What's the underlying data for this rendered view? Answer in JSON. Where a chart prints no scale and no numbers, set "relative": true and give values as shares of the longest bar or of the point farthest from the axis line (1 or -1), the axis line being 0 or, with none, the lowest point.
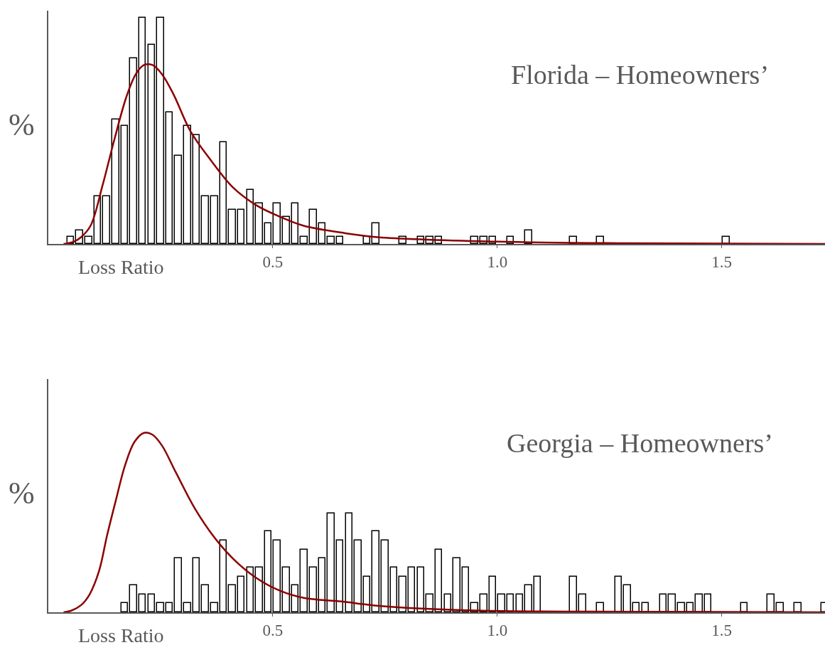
{
  "chart_data": [
    {
      "type": "bar",
      "title": "Florida – Homeowners’",
      "xlabel": "Loss Ratio",
      "ylabel": "%",
      "relative": true,
      "xlim": [
        0,
        1.73
      ],
      "xticks": [
        {
          "value": 0.5,
          "label": "0.5"
        },
        {
          "value": 1.0,
          "label": "1.0"
        },
        {
          "value": 1.5,
          "label": "1.5"
        }
      ],
      "series": [
        {
          "color": "#ffffff",
          "x": [
            0.05,
            0.07,
            0.09,
            0.11,
            0.13,
            0.15,
            0.17,
            0.19,
            0.21,
            0.23,
            0.25,
            0.27,
            0.29,
            0.31,
            0.33,
            0.35,
            0.37,
            0.39,
            0.41,
            0.43,
            0.45,
            0.47,
            0.49,
            0.51,
            0.53,
            0.55,
            0.57,
            0.59,
            0.61,
            0.63,
            0.65,
            0.71,
            0.73,
            0.79,
            0.83,
            0.85,
            0.87,
            0.95,
            0.97,
            0.99,
            1.03,
            1.07,
            1.17,
            1.23,
            1.51
          ],
          "values": [
            0.03,
            0.06,
            0.03,
            0.21,
            0.21,
            0.55,
            0.52,
            0.82,
            1,
            0.88,
            1,
            0.58,
            0.39,
            0.52,
            0.48,
            0.21,
            0.21,
            0.45,
            0.15,
            0.15,
            0.24,
            0.18,
            0.09,
            0.18,
            0.12,
            0.18,
            0.03,
            0.15,
            0.09,
            0.03,
            0.03,
            0.03,
            0.09,
            0.03,
            0.03,
            0.03,
            0.03,
            0.03,
            0.03,
            0.03,
            0.03,
            0.06,
            0.03,
            0.03,
            0.03
          ]
        },
        {
          "type": "line",
          "color": "#8b0000",
          "x": [
            0.034,
            0.057,
            0.073,
            0.094,
            0.121,
            0.147,
            0.174,
            0.195,
            0.213,
            0.232,
            0.253,
            0.279,
            0.316,
            0.358,
            0.411,
            0.464,
            0.516,
            0.569,
            0.653,
            0.733,
            1.0,
            1.29,
            1.73
          ],
          "values": [
            0,
            0.01,
            0.03,
            0.08,
            0.26,
            0.46,
            0.65,
            0.75,
            0.79,
            0.79,
            0.75,
            0.66,
            0.5,
            0.38,
            0.25,
            0.17,
            0.12,
            0.08,
            0.05,
            0.03,
            0.01,
            0.003,
            0
          ]
        }
      ]
    },
    {
      "type": "bar",
      "title": "Georgia – Homeowners’",
      "xlabel": "Loss Ratio",
      "ylabel": "%",
      "relative": true,
      "xlim": [
        0,
        1.73
      ],
      "xticks": [
        {
          "value": 0.5,
          "label": "0.5"
        },
        {
          "value": 1.0,
          "label": "1.0"
        },
        {
          "value": 1.5,
          "label": "1.5"
        }
      ],
      "series": [
        {
          "color": "#ffffff",
          "x": [
            0.17,
            0.19,
            0.21,
            0.23,
            0.25,
            0.27,
            0.29,
            0.31,
            0.33,
            0.35,
            0.37,
            0.39,
            0.41,
            0.43,
            0.45,
            0.47,
            0.49,
            0.51,
            0.53,
            0.55,
            0.57,
            0.59,
            0.61,
            0.63,
            0.65,
            0.67,
            0.69,
            0.71,
            0.73,
            0.75,
            0.77,
            0.79,
            0.81,
            0.83,
            0.85,
            0.87,
            0.89,
            0.91,
            0.93,
            0.95,
            0.97,
            0.99,
            1.01,
            1.03,
            1.05,
            1.07,
            1.09,
            1.17,
            1.19,
            1.23,
            1.27,
            1.29,
            1.31,
            1.33,
            1.37,
            1.39,
            1.41,
            1.43,
            1.45,
            1.47,
            1.55,
            1.61,
            1.63,
            1.67,
            1.73
          ],
          "values": [
            0.05,
            0.15,
            0.1,
            0.1,
            0.05,
            0.05,
            0.3,
            0.05,
            0.3,
            0.15,
            0.05,
            0.4,
            0.15,
            0.2,
            0.25,
            0.25,
            0.45,
            0.4,
            0.25,
            0.15,
            0.35,
            0.25,
            0.3,
            0.55,
            0.4,
            0.55,
            0.4,
            0.2,
            0.45,
            0.4,
            0.25,
            0.2,
            0.25,
            0.25,
            0.1,
            0.35,
            0.1,
            0.3,
            0.25,
            0.05,
            0.1,
            0.2,
            0.1,
            0.1,
            0.1,
            0.15,
            0.2,
            0.2,
            0.1,
            0.05,
            0.2,
            0.15,
            0.05,
            0.05,
            0.1,
            0.1,
            0.05,
            0.05,
            0.1,
            0.1,
            0.05,
            0.1,
            0.05,
            0.05,
            0.05
          ]
        },
        {
          "type": "line",
          "color": "#8b0000",
          "x": [
            0.034,
            0.052,
            0.073,
            0.092,
            0.113,
            0.131,
            0.15,
            0.171,
            0.192,
            0.213,
            0.232,
            0.253,
            0.284,
            0.326,
            0.369,
            0.411,
            0.464,
            0.516,
            0.569,
            0.653,
            0.736,
            0.954,
            1.318,
            1.73
          ],
          "values": [
            0,
            0.01,
            0.04,
            0.1,
            0.23,
            0.43,
            0.62,
            0.82,
            0.95,
            1,
            0.99,
            0.93,
            0.78,
            0.58,
            0.42,
            0.3,
            0.19,
            0.12,
            0.08,
            0.06,
            0.036,
            0.01,
            0.003,
            0
          ]
        }
      ]
    }
  ]
}
